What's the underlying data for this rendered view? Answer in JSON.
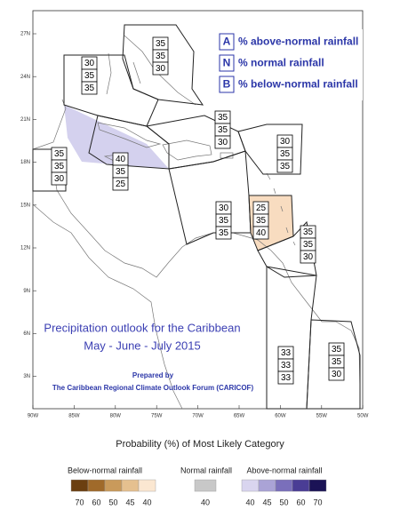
{
  "legend": {
    "items": [
      {
        "key": "A",
        "label": "% above-normal rainfall"
      },
      {
        "key": "N",
        "label": "% normal rainfall"
      },
      {
        "key": "B",
        "label": "% below-normal rainfall"
      }
    ]
  },
  "title": "Precipitation outlook for the Caribbean",
  "subtitle": "May - June - July 2015",
  "credit": {
    "line1": "Prepared by",
    "line2": "The Caribbean Regional Climate Outlook Forum (CARICOF)"
  },
  "lat_ticks": [
    "27N",
    "24N",
    "21N",
    "18N",
    "15N",
    "12N",
    "9N",
    "6N",
    "3N"
  ],
  "lon_ticks": [
    "90W",
    "85W",
    "80W",
    "75W",
    "70W",
    "65W",
    "60W",
    "55W",
    "50W"
  ],
  "regions": [
    [
      35,
      35,
      30
    ],
    [
      30,
      35,
      35
    ],
    [
      35,
      35,
      30
    ],
    [
      40,
      35,
      25
    ],
    [
      35,
      35,
      30
    ],
    [
      30,
      35,
      35
    ],
    [
      30,
      35,
      35
    ],
    [
      25,
      35,
      40
    ],
    [
      35,
      35,
      30
    ],
    [
      33,
      33,
      33
    ],
    [
      35,
      35,
      30
    ]
  ],
  "colorbar": {
    "title": "Probability (%) of Most Likely Category",
    "below": {
      "label": "Below-normal rainfall",
      "ticks": [
        70,
        60,
        50,
        45,
        40
      ],
      "colors": [
        "#6b3f10",
        "#a06a2a",
        "#c99a5b",
        "#e5c08f",
        "#fbe7d1"
      ]
    },
    "normal": {
      "label": "Normal rainfall",
      "ticks": [
        40
      ],
      "colors": [
        "#c8c8c8"
      ]
    },
    "above": {
      "label": "Above-normal rainfall",
      "ticks": [
        40,
        45,
        50,
        60,
        70
      ],
      "colors": [
        "#d9d5ef",
        "#aaa3d6",
        "#7a6fbb",
        "#4a3d95",
        "#1b1356"
      ]
    }
  }
}
